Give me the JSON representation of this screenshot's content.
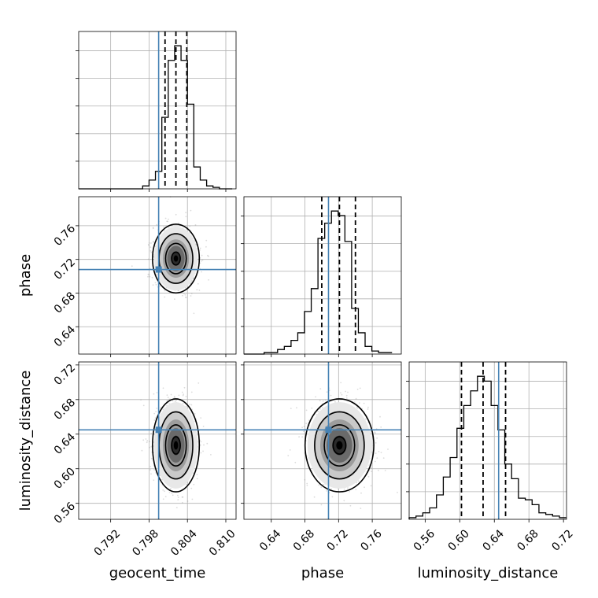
{
  "chart_data": {
    "type": "corner",
    "parameters": [
      "geocent_time",
      "phase",
      "luminosity_distance"
    ],
    "truths": {
      "geocent_time": 0.7995,
      "phase": 0.708,
      "luminosity_distance": 0.645
    },
    "ranges": {
      "geocent_time": [
        0.787,
        0.8116
      ],
      "phase": [
        0.6075,
        0.7945
      ],
      "luminosity_distance": [
        0.5415,
        0.7235
      ]
    },
    "ticks": {
      "geocent_time": [
        "0.792",
        "0.798",
        "0.804",
        "0.810"
      ],
      "phase": [
        "0.64",
        "0.68",
        "0.72",
        "0.76"
      ],
      "luminosity_distance": [
        "0.56",
        "0.60",
        "0.64",
        "0.68",
        "0.72"
      ]
    },
    "quantiles": {
      "geocent_time": [
        0.8005,
        0.8022,
        0.8039
      ],
      "phase": [
        0.7,
        0.721,
        0.74
      ],
      "luminosity_distance": [
        0.602,
        0.627,
        0.653
      ]
    },
    "histograms": {
      "geocent_time": {
        "edges": [
          0.787,
          0.788,
          0.789,
          0.79,
          0.791,
          0.792,
          0.793,
          0.794,
          0.795,
          0.796,
          0.797,
          0.798,
          0.799,
          0.8,
          0.801,
          0.802,
          0.803,
          0.804,
          0.805,
          0.806,
          0.807,
          0.808,
          0.809,
          0.81,
          0.811
        ],
        "counts": [
          0,
          0,
          0,
          0,
          0,
          0,
          0,
          0,
          0,
          0,
          0.02,
          0.06,
          0.12,
          0.49,
          0.88,
          0.98,
          0.88,
          0.58,
          0.15,
          0.06,
          0.02,
          0.01,
          0,
          0
        ]
      },
      "phase": {
        "edges": [
          0.6075,
          0.6155,
          0.6235,
          0.6315,
          0.6395,
          0.6475,
          0.6555,
          0.6635,
          0.6715,
          0.6795,
          0.6875,
          0.6955,
          0.7035,
          0.7115,
          0.7195,
          0.7275,
          0.7355,
          0.7435,
          0.7515,
          0.7595,
          0.7675,
          0.7755,
          0.7835
        ],
        "counts": [
          0,
          0,
          0,
          0.01,
          0.01,
          0.03,
          0.05,
          0.09,
          0.14,
          0.28,
          0.43,
          0.76,
          0.86,
          0.94,
          0.91,
          0.74,
          0.3,
          0.14,
          0.05,
          0.02,
          0.01,
          0.01
        ]
      },
      "luminosity_distance": {
        "edges": [
          0.5415,
          0.5494,
          0.5573,
          0.5652,
          0.5731,
          0.581,
          0.5889,
          0.5968,
          0.6047,
          0.6126,
          0.6205,
          0.6284,
          0.6363,
          0.6442,
          0.6521,
          0.66,
          0.6679,
          0.6758,
          0.6837,
          0.6916,
          0.6995,
          0.7074,
          0.7153,
          0.7232
        ],
        "counts": [
          0.01,
          0.02,
          0.04,
          0.07,
          0.15,
          0.26,
          0.38,
          0.56,
          0.7,
          0.79,
          0.88,
          0.85,
          0.7,
          0.55,
          0.34,
          0.25,
          0.13,
          0.12,
          0.09,
          0.04,
          0.03,
          0.02,
          0.01
        ]
      }
    },
    "posterior_center": {
      "geocent_time": 0.8022,
      "phase": 0.721,
      "luminosity_distance": 0.627
    },
    "posterior_sigma": {
      "geocent_time": 0.0017,
      "phase": 0.019,
      "luminosity_distance": 0.025
    },
    "grid": true
  }
}
